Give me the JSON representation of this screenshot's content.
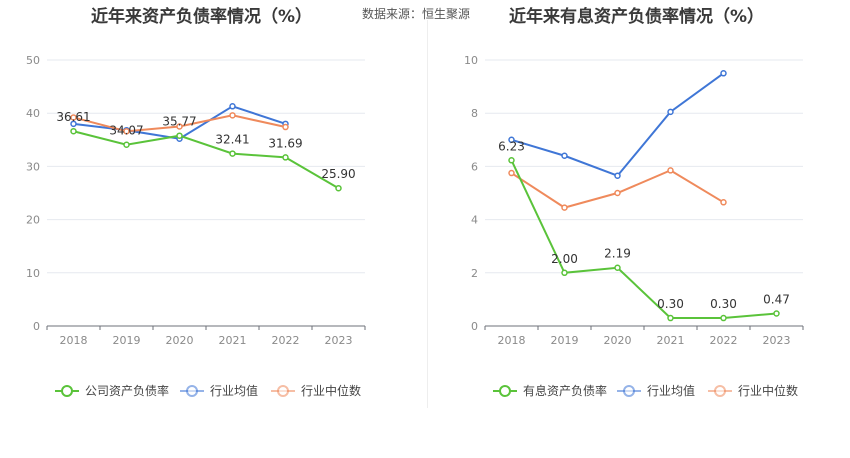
{
  "source_text": "数据来源：恒生聚源",
  "chart_data": [
    {
      "type": "line",
      "title": "近年来资产负债率情况（%）",
      "categories": [
        "2018",
        "2019",
        "2020",
        "2021",
        "2022",
        "2023"
      ],
      "ylim": [
        0,
        50
      ],
      "yticks": [
        "0",
        "10",
        "20",
        "30",
        "40",
        "50"
      ],
      "series": [
        {
          "name": "公司资产负债率",
          "color": "#5ac33a",
          "values": [
            36.61,
            34.07,
            35.77,
            32.41,
            31.69,
            25.9
          ],
          "labels": [
            "36.61",
            "34.07",
            "35.77",
            "32.41",
            "31.69",
            "25.90"
          ]
        },
        {
          "name": "行业均值",
          "color": "#3f76d6",
          "values": [
            38.0,
            36.8,
            35.2,
            41.3,
            38.0,
            null
          ]
        },
        {
          "name": "行业中位数",
          "color": "#ef8a5c",
          "values": [
            39.2,
            36.6,
            37.5,
            39.6,
            37.4,
            null
          ]
        }
      ],
      "legend_position": "bottom"
    },
    {
      "type": "line",
      "title": "近年来有息资产负债率情况（%）",
      "categories": [
        "2018",
        "2019",
        "2020",
        "2021",
        "2022",
        "2023"
      ],
      "ylim": [
        0,
        10
      ],
      "yticks": [
        "0",
        "2",
        "4",
        "6",
        "8",
        "10"
      ],
      "series": [
        {
          "name": "有息资产负债率",
          "color": "#5ac33a",
          "values": [
            6.23,
            2.0,
            2.19,
            0.3,
            0.3,
            0.47
          ],
          "labels": [
            "6.23",
            "2.00",
            "2.19",
            "0.30",
            "0.30",
            "0.47"
          ]
        },
        {
          "name": "行业均值",
          "color": "#3f76d6",
          "values": [
            7.0,
            6.4,
            5.65,
            8.05,
            9.5,
            null
          ]
        },
        {
          "name": "行业中位数",
          "color": "#ef8a5c",
          "values": [
            5.75,
            4.45,
            5.0,
            5.85,
            4.65,
            null
          ]
        }
      ],
      "legend_position": "bottom"
    }
  ]
}
